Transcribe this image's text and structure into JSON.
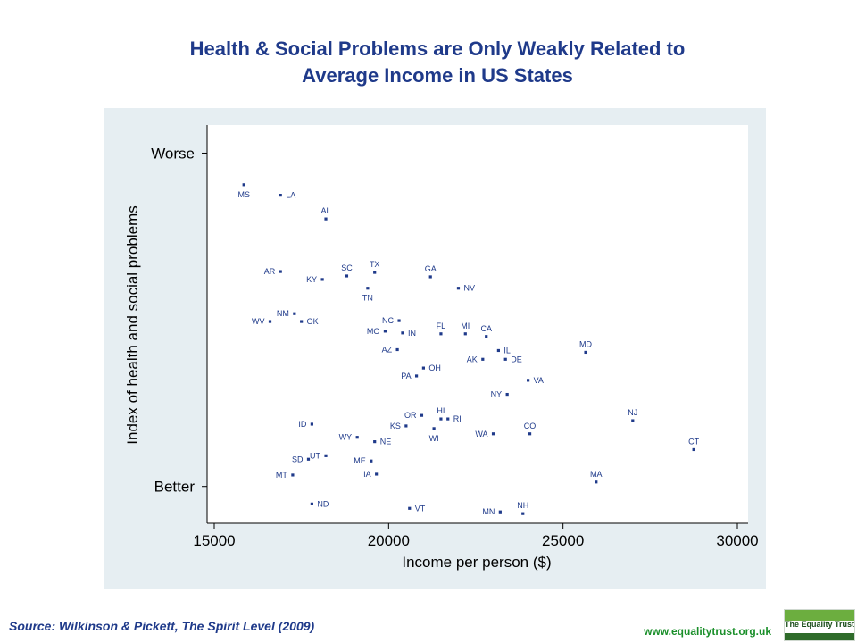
{
  "title_line1": "Health & Social Problems are Only Weakly Related to",
  "title_line2": "Average Income in US States",
  "source": "Source: Wilkinson & Pickett, The Spirit Level (2009)",
  "url": "www.equalitytrust.org.uk",
  "logo_text": "The Equality Trust",
  "colors": {
    "title": "#1f3a8a",
    "points": "#1f3a8a",
    "panel_bg": "#e6eef2",
    "plot_bg": "#ffffff",
    "url": "#1a8f2a"
  },
  "chart_data": {
    "type": "scatter",
    "xlabel": "Income per person ($)",
    "ylabel": "Index of health and social problems",
    "xlim": [
      15000,
      30000
    ],
    "ylim": [
      -1.9,
      2.6
    ],
    "x_ticks": [
      "15000",
      "20000",
      "25000",
      "30000"
    ],
    "y_tick_labels": [
      {
        "value": 2.3,
        "label": "Worse"
      },
      {
        "value": -1.5,
        "label": "Better"
      }
    ],
    "grid": false,
    "points": [
      {
        "label": "MS",
        "x": 15850,
        "y": 1.94,
        "pos": "below"
      },
      {
        "label": "LA",
        "x": 16900,
        "y": 1.82,
        "pos": "right"
      },
      {
        "label": "AL",
        "x": 18200,
        "y": 1.55,
        "pos": "above"
      },
      {
        "label": "AR",
        "x": 16900,
        "y": 0.95,
        "pos": "left"
      },
      {
        "label": "SC",
        "x": 18800,
        "y": 0.9,
        "pos": "above"
      },
      {
        "label": "KY",
        "x": 18100,
        "y": 0.86,
        "pos": "left"
      },
      {
        "label": "TX",
        "x": 19600,
        "y": 0.94,
        "pos": "above"
      },
      {
        "label": "TN",
        "x": 19400,
        "y": 0.76,
        "pos": "below"
      },
      {
        "label": "GA",
        "x": 21200,
        "y": 0.89,
        "pos": "above"
      },
      {
        "label": "NV",
        "x": 22000,
        "y": 0.76,
        "pos": "right"
      },
      {
        "label": "NM",
        "x": 17300,
        "y": 0.47,
        "pos": "left"
      },
      {
        "label": "WV",
        "x": 16600,
        "y": 0.38,
        "pos": "left"
      },
      {
        "label": "OK",
        "x": 17500,
        "y": 0.38,
        "pos": "right"
      },
      {
        "label": "NC",
        "x": 20300,
        "y": 0.39,
        "pos": "left"
      },
      {
        "label": "MO",
        "x": 19900,
        "y": 0.27,
        "pos": "left"
      },
      {
        "label": "IN",
        "x": 20400,
        "y": 0.25,
        "pos": "right"
      },
      {
        "label": "FL",
        "x": 21500,
        "y": 0.24,
        "pos": "above"
      },
      {
        "label": "MI",
        "x": 22200,
        "y": 0.24,
        "pos": "above"
      },
      {
        "label": "CA",
        "x": 22800,
        "y": 0.21,
        "pos": "above"
      },
      {
        "label": "AZ",
        "x": 20250,
        "y": 0.06,
        "pos": "left"
      },
      {
        "label": "IL",
        "x": 23150,
        "y": 0.05,
        "pos": "right"
      },
      {
        "label": "AK",
        "x": 22700,
        "y": -0.05,
        "pos": "left"
      },
      {
        "label": "DE",
        "x": 23350,
        "y": -0.05,
        "pos": "right"
      },
      {
        "label": "MD",
        "x": 25650,
        "y": 0.03,
        "pos": "above"
      },
      {
        "label": "OH",
        "x": 21000,
        "y": -0.15,
        "pos": "right"
      },
      {
        "label": "PA",
        "x": 20800,
        "y": -0.24,
        "pos": "left"
      },
      {
        "label": "VA",
        "x": 24000,
        "y": -0.29,
        "pos": "right"
      },
      {
        "label": "NY",
        "x": 23400,
        "y": -0.45,
        "pos": "left"
      },
      {
        "label": "NJ",
        "x": 27000,
        "y": -0.75,
        "pos": "above"
      },
      {
        "label": "OR",
        "x": 20950,
        "y": -0.69,
        "pos": "left"
      },
      {
        "label": "HI",
        "x": 21500,
        "y": -0.73,
        "pos": "above"
      },
      {
        "label": "RI",
        "x": 21700,
        "y": -0.73,
        "pos": "right"
      },
      {
        "label": "KS",
        "x": 20500,
        "y": -0.81,
        "pos": "left"
      },
      {
        "label": "WI",
        "x": 21300,
        "y": -0.84,
        "pos": "below"
      },
      {
        "label": "ID",
        "x": 17800,
        "y": -0.79,
        "pos": "left"
      },
      {
        "label": "CO",
        "x": 24050,
        "y": -0.9,
        "pos": "above"
      },
      {
        "label": "WA",
        "x": 23000,
        "y": -0.9,
        "pos": "left"
      },
      {
        "label": "WY",
        "x": 19100,
        "y": -0.94,
        "pos": "left"
      },
      {
        "label": "NE",
        "x": 19600,
        "y": -0.99,
        "pos": "right"
      },
      {
        "label": "CT",
        "x": 28750,
        "y": -1.08,
        "pos": "above"
      },
      {
        "label": "UT",
        "x": 18200,
        "y": -1.15,
        "pos": "left"
      },
      {
        "label": "SD",
        "x": 17700,
        "y": -1.19,
        "pos": "left"
      },
      {
        "label": "ME",
        "x": 19500,
        "y": -1.21,
        "pos": "left"
      },
      {
        "label": "IA",
        "x": 19650,
        "y": -1.36,
        "pos": "left"
      },
      {
        "label": "MT",
        "x": 17250,
        "y": -1.37,
        "pos": "left"
      },
      {
        "label": "MA",
        "x": 25950,
        "y": -1.45,
        "pos": "above"
      },
      {
        "label": "ND",
        "x": 17800,
        "y": -1.7,
        "pos": "right"
      },
      {
        "label": "VT",
        "x": 20600,
        "y": -1.75,
        "pos": "right"
      },
      {
        "label": "MN",
        "x": 23200,
        "y": -1.79,
        "pos": "left"
      },
      {
        "label": "NH",
        "x": 23850,
        "y": -1.81,
        "pos": "above"
      }
    ]
  }
}
